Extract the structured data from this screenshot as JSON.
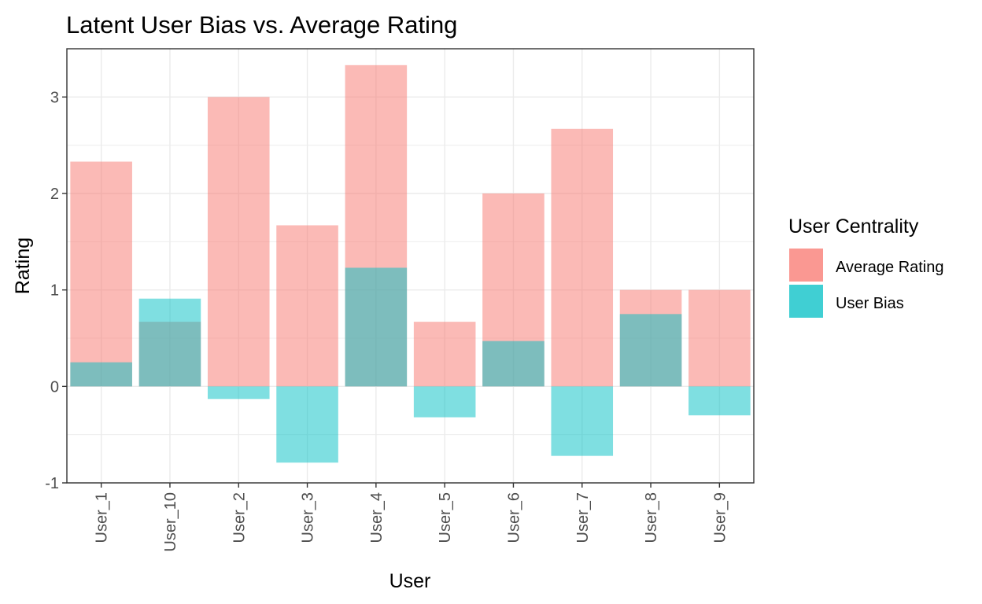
{
  "chart_data": {
    "type": "bar",
    "title": "Latent User Bias vs. Average Rating",
    "xlabel": "User",
    "ylabel": "Rating",
    "ylim": [
      -1,
      3.5
    ],
    "yticks": [
      -1,
      0,
      1,
      2,
      3
    ],
    "grid": true,
    "legend": {
      "title": "User Centrality",
      "placement": "right"
    },
    "categories": [
      "User_1",
      "User_10",
      "User_2",
      "User_3",
      "User_4",
      "User_5",
      "User_6",
      "User_7",
      "User_8",
      "User_9"
    ],
    "series": [
      {
        "name": "Average Rating",
        "color": "#F8766D",
        "opacity": 0.5,
        "values": [
          2.33,
          0.67,
          3.0,
          1.67,
          3.33,
          0.67,
          2.0,
          2.67,
          1.0,
          1.0
        ]
      },
      {
        "name": "User Bias",
        "color": "#00BFC4",
        "opacity": 0.5,
        "values": [
          0.25,
          0.91,
          -0.13,
          -0.79,
          1.23,
          -0.32,
          0.47,
          -0.72,
          0.75,
          -0.3
        ]
      }
    ],
    "legend_key_colors": [
      "#F8766D",
      "#00BFC4"
    ]
  }
}
